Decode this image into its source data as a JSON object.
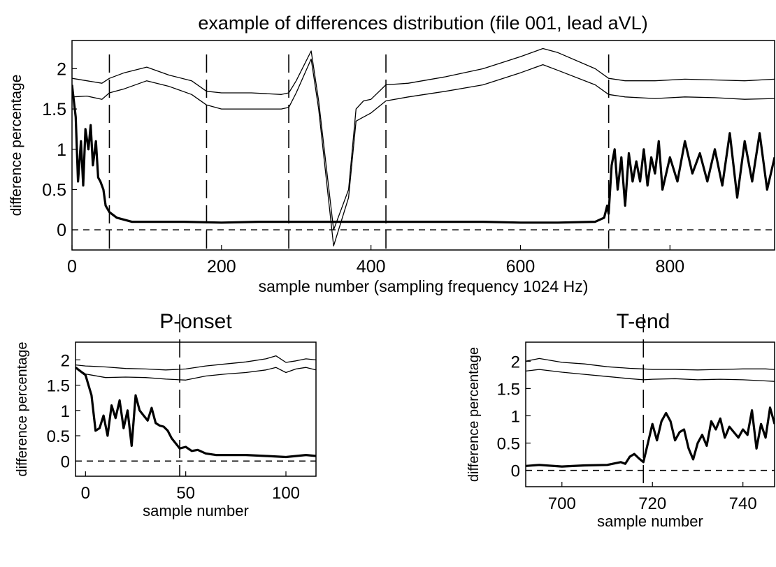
{
  "chart_data": [
    {
      "type": "line",
      "title": "example of differences distribution (file 001, lead aVL)",
      "xlabel": "sample number (sampling frequency 1024 Hz)",
      "ylabel": "difference percentage",
      "xlim": [
        0,
        940
      ],
      "ylim": [
        -0.25,
        2.35
      ],
      "xticks": [
        0,
        200,
        400,
        600,
        800
      ],
      "yticks": [
        0,
        0.5,
        1,
        1.5,
        2
      ],
      "xtick_labels": [
        "0",
        "200",
        "400",
        "600",
        "800"
      ],
      "ytick_labels": [
        "0",
        "0.5",
        "1",
        "1.5",
        "2"
      ],
      "grid": false,
      "reference_line_y": 0,
      "vertical_markers_x": [
        50,
        180,
        290,
        420,
        718
      ],
      "series": [
        {
          "style": "thin",
          "x": [
            0,
            20,
            40,
            50,
            70,
            100,
            130,
            160,
            180,
            200,
            240,
            280,
            290,
            300,
            320,
            330,
            350,
            370,
            380,
            390,
            400,
            420,
            450,
            500,
            550,
            600,
            630,
            650,
            700,
            718,
            740,
            780,
            820,
            860,
            900,
            940
          ],
          "y": [
            1.88,
            1.85,
            1.82,
            1.88,
            1.95,
            2.02,
            1.92,
            1.85,
            1.72,
            1.7,
            1.7,
            1.68,
            1.7,
            1.85,
            2.22,
            1.6,
            0.0,
            0.5,
            1.5,
            1.6,
            1.62,
            1.8,
            1.82,
            1.9,
            2.0,
            2.15,
            2.25,
            2.2,
            2.0,
            1.88,
            1.85,
            1.85,
            1.87,
            1.86,
            1.85,
            1.87
          ]
        },
        {
          "style": "thin",
          "x": [
            0,
            20,
            40,
            50,
            70,
            100,
            130,
            160,
            180,
            200,
            240,
            280,
            290,
            300,
            320,
            330,
            350,
            370,
            380,
            390,
            400,
            420,
            450,
            500,
            550,
            600,
            630,
            650,
            700,
            718,
            740,
            780,
            820,
            860,
            900,
            940
          ],
          "y": [
            1.65,
            1.66,
            1.62,
            1.7,
            1.75,
            1.85,
            1.78,
            1.68,
            1.55,
            1.5,
            1.5,
            1.5,
            1.52,
            1.7,
            2.12,
            1.5,
            -0.2,
            0.4,
            1.35,
            1.4,
            1.45,
            1.6,
            1.65,
            1.72,
            1.8,
            1.95,
            2.05,
            1.98,
            1.8,
            1.68,
            1.65,
            1.63,
            1.65,
            1.64,
            1.62,
            1.63
          ]
        },
        {
          "style": "thick",
          "x": [
            0,
            5,
            8,
            12,
            15,
            18,
            22,
            25,
            28,
            32,
            35,
            38,
            42,
            45,
            50,
            60,
            80,
            100,
            150,
            200,
            250,
            300,
            350,
            400,
            450,
            500,
            550,
            600,
            650,
            700,
            712,
            716,
            718,
            722,
            726,
            730,
            735,
            740,
            745,
            750,
            755,
            760,
            765,
            770,
            775,
            780,
            785,
            790,
            800,
            810,
            820,
            830,
            840,
            850,
            860,
            870,
            880,
            890,
            900,
            910,
            920,
            930,
            940
          ],
          "y": [
            1.8,
            1.4,
            0.6,
            1.1,
            0.55,
            1.25,
            1.0,
            1.3,
            0.8,
            1.1,
            0.65,
            0.6,
            0.5,
            0.3,
            0.22,
            0.15,
            0.1,
            0.1,
            0.1,
            0.09,
            0.1,
            0.1,
            0.1,
            0.1,
            0.1,
            0.1,
            0.1,
            0.09,
            0.09,
            0.1,
            0.15,
            0.3,
            0.2,
            0.8,
            1.0,
            0.5,
            0.9,
            0.3,
            0.95,
            0.6,
            0.85,
            0.6,
            1.0,
            0.55,
            0.9,
            0.7,
            1.1,
            0.5,
            0.9,
            0.6,
            1.1,
            0.7,
            0.95,
            0.6,
            1.0,
            0.55,
            1.2,
            0.4,
            1.1,
            0.6,
            1.2,
            0.5,
            0.9
          ]
        }
      ]
    },
    {
      "type": "line",
      "title": "P-onset",
      "xlabel": "sample number",
      "ylabel": "difference percentage",
      "xlim": [
        -5,
        115
      ],
      "ylim": [
        -0.3,
        2.35
      ],
      "xticks": [
        0,
        50,
        100
      ],
      "yticks": [
        0,
        0.5,
        1,
        1.5,
        2
      ],
      "xtick_labels": [
        "0",
        "50",
        "100"
      ],
      "ytick_labels": [
        "0",
        "0.5",
        "1",
        "1.5",
        "2"
      ],
      "grid": false,
      "reference_line_y": 0,
      "vertical_markers_x": [
        47
      ],
      "series": [
        {
          "style": "thin",
          "x": [
            -5,
            0,
            10,
            20,
            30,
            40,
            50,
            60,
            70,
            80,
            90,
            95,
            100,
            105,
            110,
            115
          ],
          "y": [
            1.9,
            1.88,
            1.86,
            1.83,
            1.82,
            1.8,
            1.82,
            1.88,
            1.92,
            1.96,
            2.02,
            2.08,
            1.95,
            1.98,
            2.02,
            2.0
          ]
        },
        {
          "style": "thin",
          "x": [
            -5,
            0,
            10,
            20,
            30,
            40,
            50,
            60,
            70,
            80,
            90,
            95,
            100,
            105,
            110,
            115
          ],
          "y": [
            1.85,
            1.72,
            1.65,
            1.66,
            1.65,
            1.62,
            1.6,
            1.68,
            1.72,
            1.75,
            1.8,
            1.85,
            1.75,
            1.82,
            1.85,
            1.8
          ]
        },
        {
          "style": "thick",
          "x": [
            -5,
            0,
            3,
            5,
            7,
            9,
            11,
            13,
            15,
            17,
            19,
            21,
            23,
            25,
            27,
            29,
            31,
            33,
            35,
            37,
            39,
            41,
            43,
            45,
            47,
            50,
            53,
            56,
            60,
            65,
            70,
            80,
            90,
            100,
            110,
            115
          ],
          "y": [
            1.85,
            1.7,
            1.3,
            0.6,
            0.65,
            0.9,
            0.5,
            1.1,
            0.85,
            1.2,
            0.65,
            1.0,
            0.3,
            1.3,
            1.0,
            0.9,
            0.8,
            1.05,
            0.75,
            0.7,
            0.68,
            0.6,
            0.45,
            0.35,
            0.25,
            0.28,
            0.2,
            0.22,
            0.15,
            0.12,
            0.12,
            0.12,
            0.1,
            0.08,
            0.12,
            0.1
          ]
        }
      ]
    },
    {
      "type": "line",
      "title": "T-end",
      "xlabel": "sample number",
      "ylabel": "difference percentage",
      "xlim": [
        692,
        747
      ],
      "ylim": [
        -0.3,
        2.35
      ],
      "xticks": [
        700,
        720,
        740
      ],
      "yticks": [
        0,
        0.5,
        1,
        1.5,
        2
      ],
      "xtick_labels": [
        "700",
        "720",
        "740"
      ],
      "ytick_labels": [
        "0",
        "0.5",
        "1",
        "1.5",
        "2"
      ],
      "grid": false,
      "reference_line_y": 0,
      "vertical_markers_x": [
        718
      ],
      "series": [
        {
          "style": "thin",
          "x": [
            692,
            695,
            700,
            705,
            710,
            715,
            718,
            720,
            725,
            730,
            735,
            740,
            745,
            747
          ],
          "y": [
            2.0,
            2.05,
            1.98,
            1.95,
            1.9,
            1.87,
            1.86,
            1.85,
            1.85,
            1.84,
            1.85,
            1.86,
            1.86,
            1.85
          ]
        },
        {
          "style": "thin",
          "x": [
            692,
            695,
            700,
            705,
            710,
            715,
            718,
            720,
            725,
            730,
            735,
            740,
            745,
            747
          ],
          "y": [
            1.82,
            1.85,
            1.8,
            1.76,
            1.72,
            1.68,
            1.66,
            1.67,
            1.68,
            1.66,
            1.67,
            1.66,
            1.64,
            1.63
          ]
        },
        {
          "style": "thick",
          "x": [
            692,
            695,
            700,
            705,
            710,
            713,
            714,
            715,
            716,
            717,
            718,
            719,
            720,
            721,
            722,
            723,
            724,
            725,
            726,
            727,
            728,
            729,
            730,
            731,
            732,
            733,
            734,
            735,
            736,
            737,
            738,
            739,
            740,
            741,
            742,
            743,
            744,
            745,
            746,
            747
          ],
          "y": [
            0.08,
            0.1,
            0.07,
            0.09,
            0.1,
            0.15,
            0.12,
            0.25,
            0.3,
            0.22,
            0.15,
            0.5,
            0.85,
            0.55,
            0.9,
            1.05,
            0.9,
            0.55,
            0.7,
            0.75,
            0.4,
            0.2,
            0.5,
            0.65,
            0.45,
            0.9,
            0.75,
            0.95,
            0.6,
            0.8,
            0.7,
            0.6,
            0.75,
            0.65,
            1.1,
            0.4,
            0.85,
            0.6,
            1.15,
            0.85
          ]
        }
      ]
    }
  ]
}
